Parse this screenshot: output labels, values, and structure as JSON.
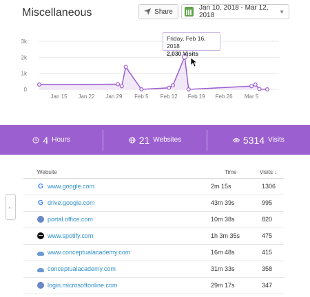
{
  "header": {
    "title": "Miscellaneous",
    "share_label": "Share",
    "date_range": "Jan 10, 2018 - Mar 12, 2018"
  },
  "chart_data": {
    "type": "area",
    "y_ticks": [
      "3k",
      "2k",
      "1k",
      "0"
    ],
    "x_ticks": [
      "Jan 15",
      "Jan 22",
      "Jan 29",
      "Feb 5",
      "Feb 12",
      "Feb 19",
      "Feb 26",
      "Mar 5"
    ],
    "ylim": [
      0,
      3000
    ],
    "series": [
      {
        "values": [
          {
            "x": "2018-01-10",
            "y": 300
          },
          {
            "x": "2018-01-30",
            "y": 320
          },
          {
            "x": "2018-01-31",
            "y": 200
          },
          {
            "x": "2018-02-01",
            "y": 1400
          },
          {
            "x": "2018-02-05",
            "y": 0
          },
          {
            "x": "2018-02-12",
            "y": 100
          },
          {
            "x": "2018-02-13",
            "y": 250
          },
          {
            "x": "2018-02-16",
            "y": 2030
          },
          {
            "x": "2018-02-17",
            "y": 0
          },
          {
            "x": "2018-03-05",
            "y": 200
          },
          {
            "x": "2018-03-06",
            "y": 300
          },
          {
            "x": "2018-03-07",
            "y": 20
          },
          {
            "x": "2018-03-09",
            "y": 0
          }
        ]
      }
    ],
    "color": "#9b5fcf",
    "grid": true,
    "tooltip": {
      "date": "Friday, Feb 16, 2018",
      "visits": "2,030 Visits"
    }
  },
  "stats": [
    {
      "value": "4",
      "label": "Hours",
      "icon": "clock-icon"
    },
    {
      "value": "21",
      "label": "Websites",
      "icon": "globe-icon"
    },
    {
      "value": "5314",
      "label": "Visits",
      "icon": "eye-icon"
    }
  ],
  "table": {
    "headers": {
      "website": "Website",
      "time": "Time",
      "visits": "Visits ↓"
    },
    "rows": [
      {
        "site": "www.google.com",
        "time": "2m 15s",
        "visits": "1306",
        "icon": "google"
      },
      {
        "site": "drive.google.com",
        "time": "43m 39s",
        "visits": "995",
        "icon": "google"
      },
      {
        "site": "portal.office.com",
        "time": "10m 38s",
        "visits": "820",
        "icon": "globe"
      },
      {
        "site": "www.spotify.com",
        "time": "1h 3m 35s",
        "visits": "475",
        "icon": "spotify"
      },
      {
        "site": "www.conceptualacademy.com",
        "time": "16m 48s",
        "visits": "415",
        "icon": "cloud"
      },
      {
        "site": "conceptualacademy.com",
        "time": "31m 33s",
        "visits": "358",
        "icon": "cloud"
      },
      {
        "site": "login.microsoftonline.com",
        "time": "29m 17s",
        "visits": "347",
        "icon": "globe"
      }
    ]
  },
  "back_arrow": "←"
}
